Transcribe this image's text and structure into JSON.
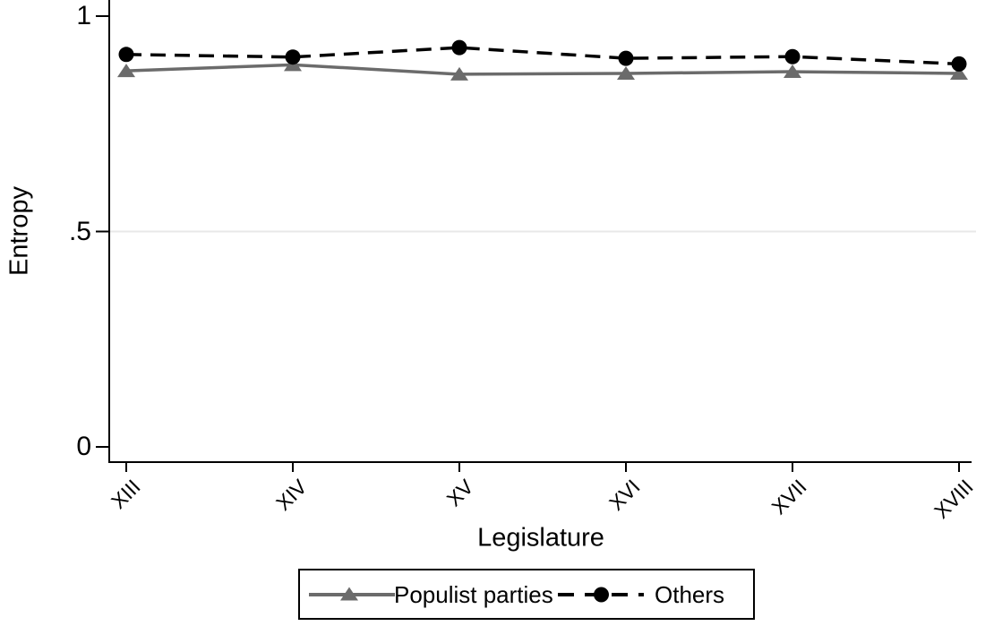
{
  "chart_data": {
    "type": "line",
    "title": "",
    "xlabel": "Legislature",
    "ylabel": "Entropy",
    "categories": [
      "XIII",
      "XIV",
      "XV",
      "XVI",
      "XVII",
      "XVIII"
    ],
    "series": [
      {
        "name": "Populist parties",
        "values": [
          0.873,
          0.887,
          0.865,
          0.867,
          0.871,
          0.867
        ],
        "color": "#6b6b6b",
        "line_style": "solid",
        "marker": "triangle"
      },
      {
        "name": "Others",
        "values": [
          0.911,
          0.905,
          0.927,
          0.902,
          0.906,
          0.889
        ],
        "color": "#000000",
        "line_style": "dashed",
        "marker": "circle"
      }
    ],
    "yticks": [
      {
        "value": 0,
        "label": "0"
      },
      {
        "value": 0.5,
        "label": ".5"
      },
      {
        "value": 1,
        "label": "1"
      }
    ],
    "ylim": [
      0,
      1.075
    ],
    "grid_values": [
      0.5
    ],
    "grid_color": "#e8e8e8",
    "axis_color": "#000000",
    "legend_position": "bottom-center"
  }
}
